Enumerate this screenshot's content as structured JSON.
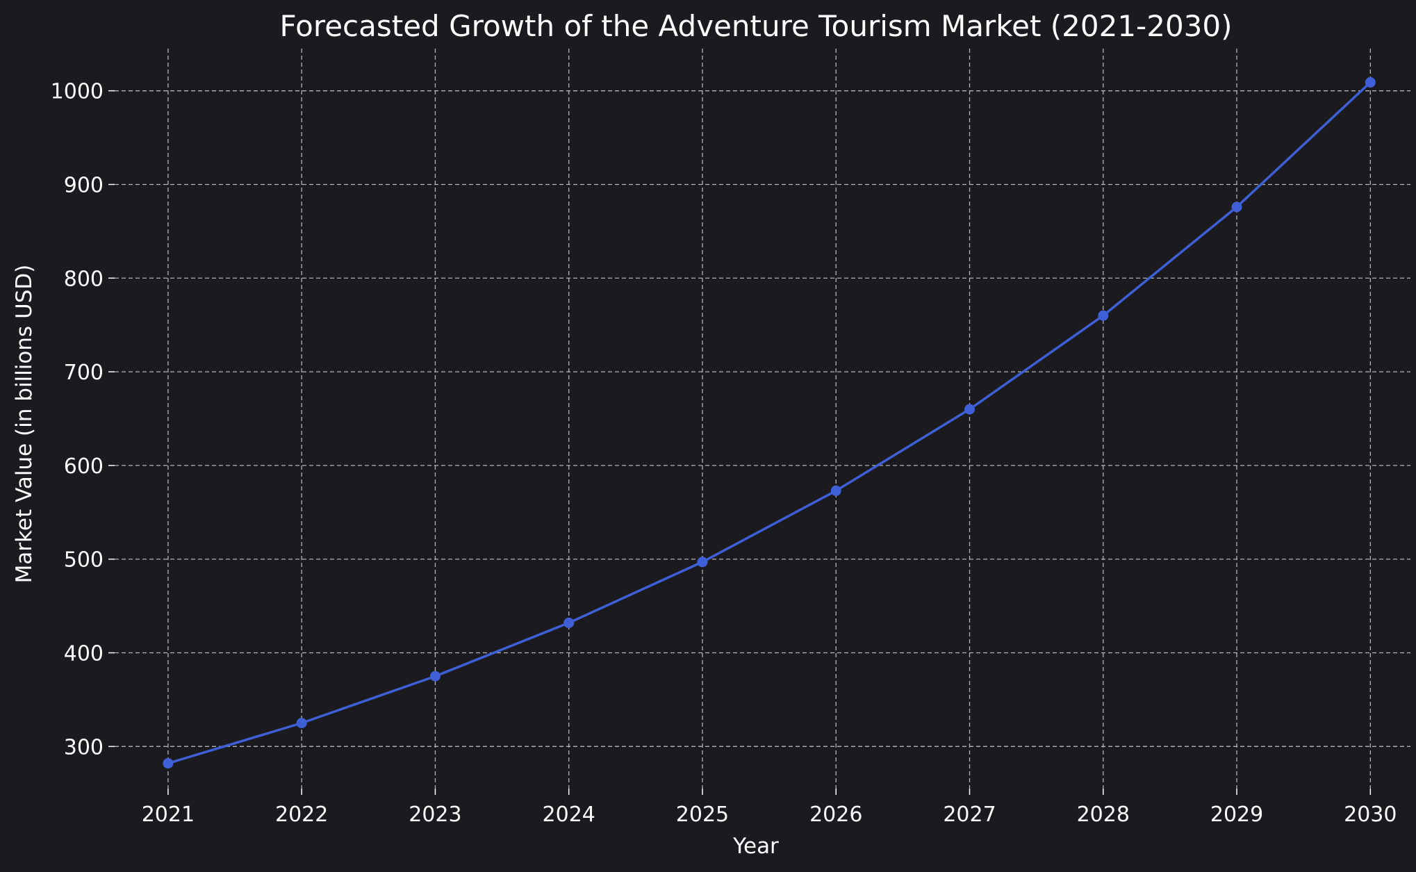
{
  "chart_data": {
    "type": "line",
    "title": "Forecasted Growth of the Adventure Tourism Market (2021-2030)",
    "xlabel": "Year",
    "ylabel": "Market Value (in billions USD)",
    "x": [
      2021,
      2022,
      2023,
      2024,
      2025,
      2026,
      2027,
      2028,
      2029,
      2030
    ],
    "series": [
      {
        "values": [
          282,
          325,
          375,
          432,
          497,
          573,
          660,
          760,
          876,
          1009
        ]
      }
    ],
    "ylim": [
      255,
      1045
    ],
    "xlim": [
      2020.6,
      2030.3
    ],
    "yticks": [
      300,
      400,
      500,
      600,
      700,
      800,
      900,
      1000
    ],
    "grid": true,
    "background": "#1b1b1f",
    "line_color": "#3f5fd6",
    "marker": "circle"
  }
}
